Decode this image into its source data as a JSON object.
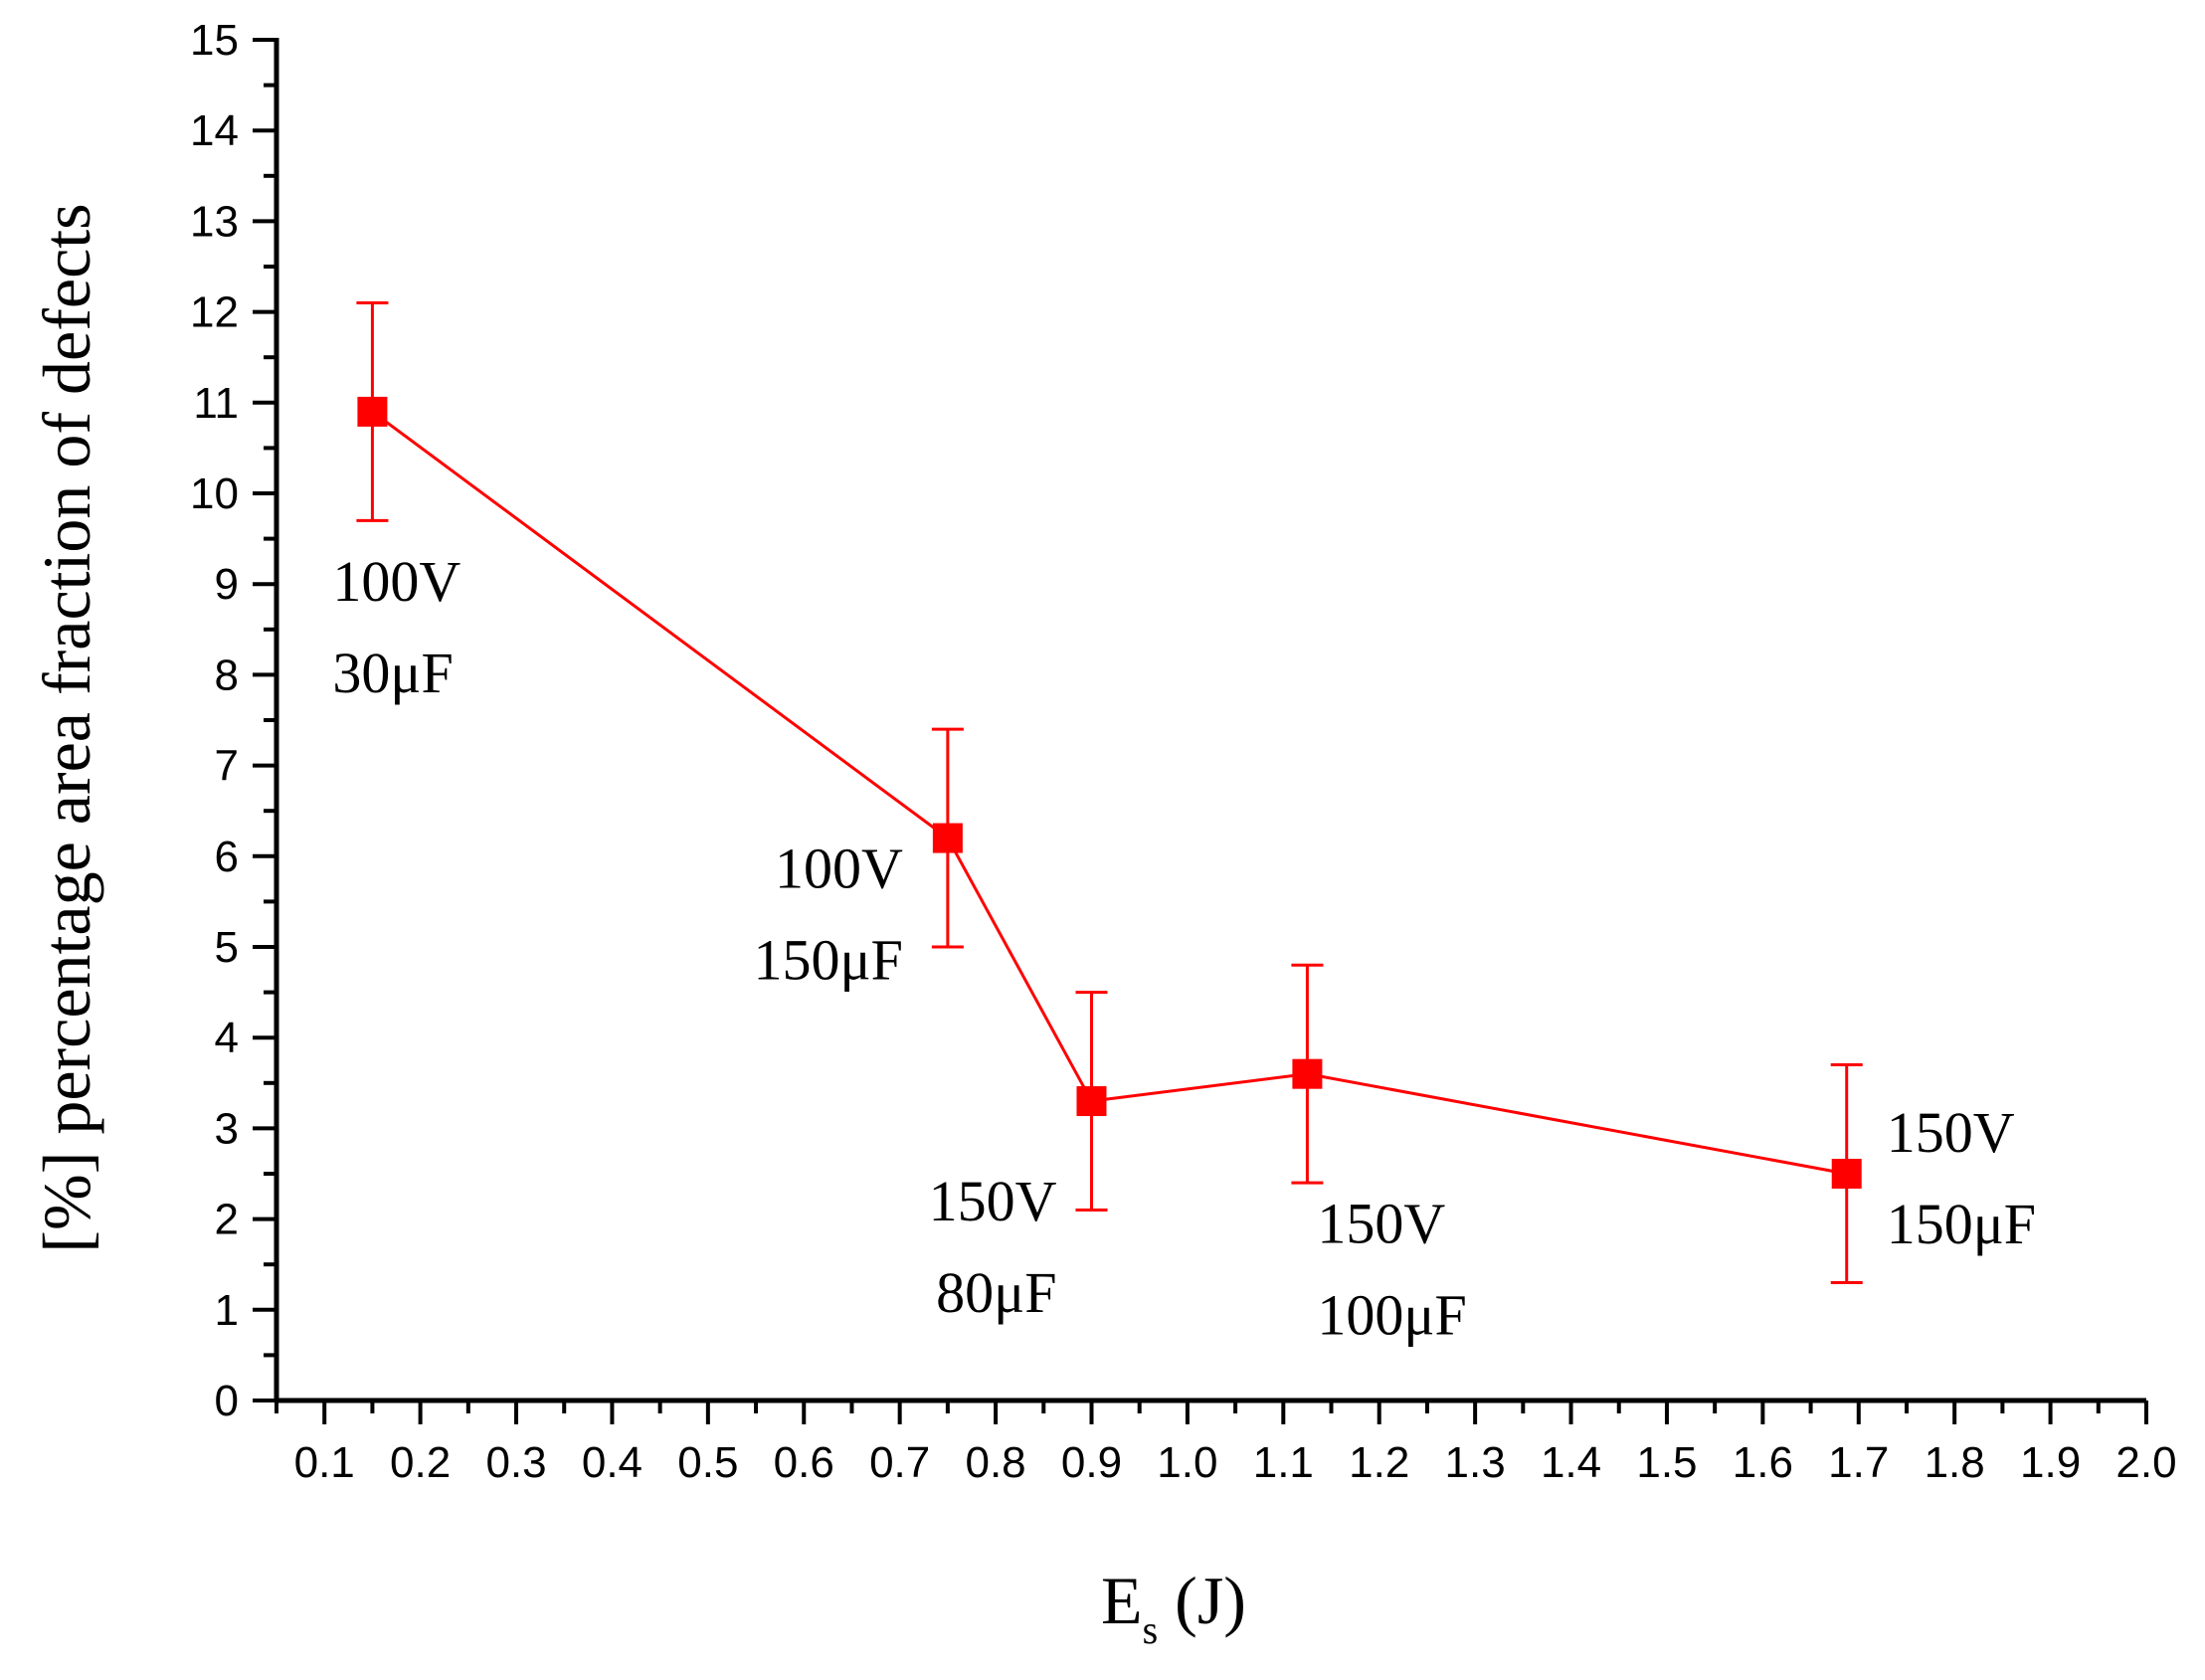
{
  "chart_data": {
    "type": "scatter",
    "title": "",
    "xlabel": {
      "main": "E",
      "sub": "s",
      "suffix": " (J)"
    },
    "ylabel": "[%] percentage area fraction of defects",
    "xlim": [
      0.05,
      2.0
    ],
    "ylim": [
      0,
      15
    ],
    "xticks": [
      0.1,
      0.2,
      0.3,
      0.4,
      0.5,
      0.6,
      0.7,
      0.8,
      0.9,
      1.0,
      1.1,
      1.2,
      1.3,
      1.4,
      1.5,
      1.6,
      1.7,
      1.8,
      1.9,
      2.0
    ],
    "xtick_labels": [
      "0.1",
      "0.2",
      "0.3",
      "0.4",
      "0.5",
      "0.6",
      "0.7",
      "0.8",
      "0.9",
      "1.0",
      "1.1",
      "1.2",
      "1.3",
      "1.4",
      "1.5",
      "1.6",
      "1.7",
      "1.8",
      "1.9",
      "2.0"
    ],
    "yticks": [
      0,
      1,
      2,
      3,
      4,
      5,
      6,
      7,
      8,
      9,
      10,
      11,
      12,
      13,
      14,
      15
    ],
    "ytick_labels": [
      "0",
      "1",
      "2",
      "3",
      "4",
      "5",
      "6",
      "7",
      "8",
      "9",
      "10",
      "11",
      "12",
      "13",
      "14",
      "15"
    ],
    "grid": false,
    "series": [
      {
        "name": "defects",
        "color": "#ff0000",
        "marker": "square",
        "line": true,
        "points": [
          {
            "x": 0.15,
            "y": 10.9,
            "err_low": 9.7,
            "err_high": 12.1,
            "label": [
              "100V",
              "30μF"
            ],
            "label_pos": "below"
          },
          {
            "x": 0.75,
            "y": 6.2,
            "err_low": 5.0,
            "err_high": 7.4,
            "label": [
              "100V",
              "150μF"
            ],
            "label_pos": "left"
          },
          {
            "x": 0.9,
            "y": 3.3,
            "err_low": 2.1,
            "err_high": 4.5,
            "label": [
              "150V",
              "80μF"
            ],
            "label_pos": "below-left"
          },
          {
            "x": 1.125,
            "y": 3.6,
            "err_low": 2.4,
            "err_high": 4.8,
            "label": [
              "150V",
              "100μF"
            ],
            "label_pos": "below-right"
          },
          {
            "x": 1.6875,
            "y": 2.5,
            "err_low": 1.3,
            "err_high": 3.7,
            "label": [
              "150V",
              "150μF"
            ],
            "label_pos": "right"
          }
        ]
      }
    ]
  }
}
